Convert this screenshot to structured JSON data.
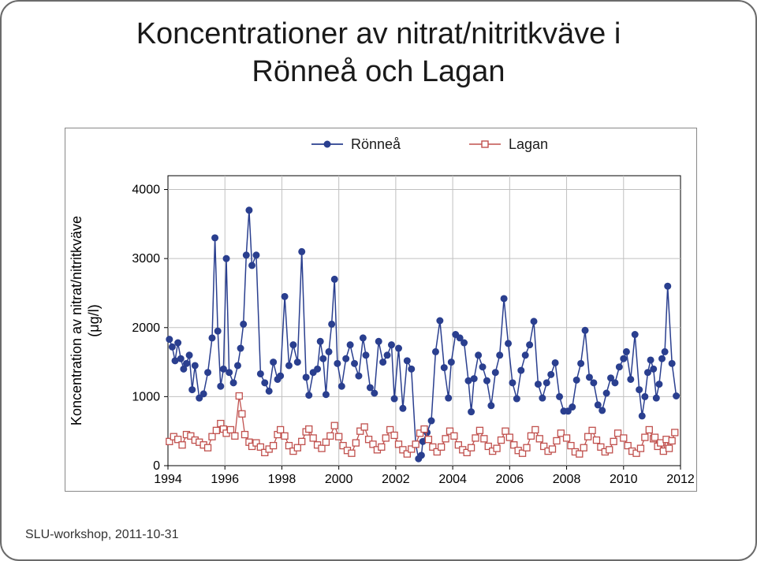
{
  "title": "Koncentrationer av nitrat/nitritkväve i\nRönneå och Lagan",
  "footer": "SLU-workshop, 2011-10-31",
  "chart": {
    "type": "line",
    "background_color": "#ffffff",
    "plot_border_color": "#000000",
    "grid_color": "#c0c0c0",
    "xlim": [
      1994,
      2012
    ],
    "ylim": [
      0,
      4200
    ],
    "xticks": [
      1994,
      1996,
      1998,
      2000,
      2002,
      2004,
      2006,
      2008,
      2010,
      2012
    ],
    "yticks": [
      0,
      1000,
      2000,
      3000,
      4000
    ],
    "ylabel": "Koncentration av nitrat/nitritkväve\n(μg/l)",
    "ylabel_fontsize": 18,
    "tick_fontsize": 16,
    "legend": {
      "position": "top",
      "items": [
        {
          "label": "Rönneå",
          "color": "#2a3f8f",
          "marker": "circle"
        },
        {
          "label": "Lagan",
          "color": "#c0504d",
          "marker": "square-open"
        }
      ]
    },
    "series": [
      {
        "name": "Rönneå",
        "color": "#2a3f8f",
        "line_width": 1.5,
        "marker": "circle",
        "marker_size": 4,
        "data": [
          [
            1994.05,
            1830
          ],
          [
            1994.15,
            1720
          ],
          [
            1994.25,
            1520
          ],
          [
            1994.35,
            1780
          ],
          [
            1994.45,
            1550
          ],
          [
            1994.55,
            1400
          ],
          [
            1994.65,
            1480
          ],
          [
            1994.75,
            1600
          ],
          [
            1994.85,
            1100
          ],
          [
            1994.95,
            1450
          ],
          [
            1995.1,
            980
          ],
          [
            1995.25,
            1040
          ],
          [
            1995.4,
            1350
          ],
          [
            1995.55,
            1850
          ],
          [
            1995.65,
            3300
          ],
          [
            1995.75,
            1950
          ],
          [
            1995.85,
            1150
          ],
          [
            1995.95,
            1400
          ],
          [
            1996.05,
            3000
          ],
          [
            1996.15,
            1350
          ],
          [
            1996.3,
            1200
          ],
          [
            1996.45,
            1450
          ],
          [
            1996.55,
            1700
          ],
          [
            1996.65,
            2050
          ],
          [
            1996.75,
            3050
          ],
          [
            1996.85,
            3700
          ],
          [
            1996.95,
            2900
          ],
          [
            1997.1,
            3050
          ],
          [
            1997.25,
            1330
          ],
          [
            1997.4,
            1200
          ],
          [
            1997.55,
            1080
          ],
          [
            1997.7,
            1500
          ],
          [
            1997.85,
            1250
          ],
          [
            1997.95,
            1300
          ],
          [
            1998.1,
            2450
          ],
          [
            1998.25,
            1450
          ],
          [
            1998.4,
            1750
          ],
          [
            1998.55,
            1500
          ],
          [
            1998.7,
            3100
          ],
          [
            1998.85,
            1280
          ],
          [
            1998.95,
            1020
          ],
          [
            1999.1,
            1350
          ],
          [
            1999.25,
            1400
          ],
          [
            1999.35,
            1800
          ],
          [
            1999.45,
            1550
          ],
          [
            1999.55,
            1030
          ],
          [
            1999.65,
            1650
          ],
          [
            1999.75,
            2050
          ],
          [
            1999.85,
            2700
          ],
          [
            1999.95,
            1480
          ],
          [
            2000.1,
            1150
          ],
          [
            2000.25,
            1550
          ],
          [
            2000.4,
            1750
          ],
          [
            2000.55,
            1480
          ],
          [
            2000.7,
            1300
          ],
          [
            2000.85,
            1850
          ],
          [
            2000.95,
            1600
          ],
          [
            2001.1,
            1130
          ],
          [
            2001.25,
            1050
          ],
          [
            2001.4,
            1800
          ],
          [
            2001.55,
            1500
          ],
          [
            2001.7,
            1600
          ],
          [
            2001.85,
            1750
          ],
          [
            2001.95,
            970
          ],
          [
            2002.1,
            1700
          ],
          [
            2002.25,
            830
          ],
          [
            2002.4,
            1520
          ],
          [
            2002.55,
            1400
          ],
          [
            2002.7,
            310
          ],
          [
            2002.8,
            100
          ],
          [
            2002.9,
            150
          ],
          [
            2002.95,
            350
          ],
          [
            2003.1,
            480
          ],
          [
            2003.25,
            650
          ],
          [
            2003.4,
            1650
          ],
          [
            2003.55,
            2100
          ],
          [
            2003.7,
            1420
          ],
          [
            2003.85,
            980
          ],
          [
            2003.95,
            1500
          ],
          [
            2004.1,
            1900
          ],
          [
            2004.25,
            1850
          ],
          [
            2004.4,
            1780
          ],
          [
            2004.55,
            1230
          ],
          [
            2004.65,
            780
          ],
          [
            2004.75,
            1260
          ],
          [
            2004.9,
            1600
          ],
          [
            2005.05,
            1430
          ],
          [
            2005.2,
            1230
          ],
          [
            2005.35,
            870
          ],
          [
            2005.5,
            1350
          ],
          [
            2005.65,
            1600
          ],
          [
            2005.8,
            2420
          ],
          [
            2005.95,
            1770
          ],
          [
            2006.1,
            1200
          ],
          [
            2006.25,
            970
          ],
          [
            2006.4,
            1380
          ],
          [
            2006.55,
            1600
          ],
          [
            2006.7,
            1750
          ],
          [
            2006.85,
            2090
          ],
          [
            2007.0,
            1180
          ],
          [
            2007.15,
            980
          ],
          [
            2007.3,
            1200
          ],
          [
            2007.45,
            1320
          ],
          [
            2007.6,
            1490
          ],
          [
            2007.75,
            1000
          ],
          [
            2007.9,
            790
          ],
          [
            2008.05,
            790
          ],
          [
            2008.2,
            850
          ],
          [
            2008.35,
            1240
          ],
          [
            2008.5,
            1480
          ],
          [
            2008.65,
            1960
          ],
          [
            2008.8,
            1280
          ],
          [
            2008.95,
            1200
          ],
          [
            2009.1,
            880
          ],
          [
            2009.25,
            800
          ],
          [
            2009.4,
            1050
          ],
          [
            2009.55,
            1270
          ],
          [
            2009.7,
            1200
          ],
          [
            2009.85,
            1430
          ],
          [
            2010.0,
            1550
          ],
          [
            2010.1,
            1650
          ],
          [
            2010.25,
            1250
          ],
          [
            2010.4,
            1900
          ],
          [
            2010.55,
            1100
          ],
          [
            2010.65,
            720
          ],
          [
            2010.75,
            1000
          ],
          [
            2010.85,
            1350
          ],
          [
            2010.95,
            1530
          ],
          [
            2011.05,
            1400
          ],
          [
            2011.15,
            980
          ],
          [
            2011.25,
            1180
          ],
          [
            2011.35,
            1550
          ],
          [
            2011.45,
            1650
          ],
          [
            2011.55,
            2600
          ],
          [
            2011.7,
            1480
          ],
          [
            2011.85,
            1010
          ]
        ]
      },
      {
        "name": "Lagan",
        "color": "#c0504d",
        "line_width": 1.3,
        "marker": "square-open",
        "marker_size": 4,
        "data": [
          [
            1994.05,
            350
          ],
          [
            1994.2,
            420
          ],
          [
            1994.35,
            380
          ],
          [
            1994.5,
            300
          ],
          [
            1994.65,
            450
          ],
          [
            1994.8,
            430
          ],
          [
            1994.95,
            370
          ],
          [
            1995.1,
            340
          ],
          [
            1995.25,
            300
          ],
          [
            1995.4,
            260
          ],
          [
            1995.55,
            420
          ],
          [
            1995.7,
            510
          ],
          [
            1995.85,
            610
          ],
          [
            1995.95,
            530
          ],
          [
            1996.05,
            470
          ],
          [
            1996.2,
            520
          ],
          [
            1996.35,
            430
          ],
          [
            1996.5,
            1010
          ],
          [
            1996.6,
            750
          ],
          [
            1996.7,
            450
          ],
          [
            1996.85,
            340
          ],
          [
            1996.95,
            280
          ],
          [
            1997.1,
            330
          ],
          [
            1997.25,
            270
          ],
          [
            1997.4,
            190
          ],
          [
            1997.55,
            240
          ],
          [
            1997.7,
            290
          ],
          [
            1997.85,
            450
          ],
          [
            1997.95,
            520
          ],
          [
            1998.1,
            430
          ],
          [
            1998.25,
            290
          ],
          [
            1998.4,
            210
          ],
          [
            1998.55,
            260
          ],
          [
            1998.7,
            350
          ],
          [
            1998.85,
            490
          ],
          [
            1998.95,
            530
          ],
          [
            1999.1,
            400
          ],
          [
            1999.25,
            300
          ],
          [
            1999.4,
            250
          ],
          [
            1999.55,
            340
          ],
          [
            1999.7,
            430
          ],
          [
            1999.85,
            580
          ],
          [
            2000.0,
            420
          ],
          [
            2000.15,
            290
          ],
          [
            2000.3,
            220
          ],
          [
            2000.45,
            180
          ],
          [
            2000.6,
            330
          ],
          [
            2000.75,
            500
          ],
          [
            2000.9,
            560
          ],
          [
            2001.05,
            380
          ],
          [
            2001.2,
            310
          ],
          [
            2001.35,
            230
          ],
          [
            2001.5,
            270
          ],
          [
            2001.65,
            400
          ],
          [
            2001.8,
            520
          ],
          [
            2001.95,
            440
          ],
          [
            2002.1,
            310
          ],
          [
            2002.25,
            230
          ],
          [
            2002.4,
            170
          ],
          [
            2002.55,
            240
          ],
          [
            2002.7,
            310
          ],
          [
            2002.85,
            470
          ],
          [
            2003.0,
            530
          ],
          [
            2003.15,
            380
          ],
          [
            2003.3,
            270
          ],
          [
            2003.45,
            200
          ],
          [
            2003.6,
            270
          ],
          [
            2003.75,
            390
          ],
          [
            2003.9,
            500
          ],
          [
            2004.05,
            430
          ],
          [
            2004.2,
            300
          ],
          [
            2004.35,
            230
          ],
          [
            2004.5,
            190
          ],
          [
            2004.65,
            260
          ],
          [
            2004.8,
            400
          ],
          [
            2004.95,
            510
          ],
          [
            2005.1,
            390
          ],
          [
            2005.25,
            280
          ],
          [
            2005.4,
            210
          ],
          [
            2005.55,
            250
          ],
          [
            2005.7,
            370
          ],
          [
            2005.85,
            500
          ],
          [
            2006.0,
            410
          ],
          [
            2006.15,
            300
          ],
          [
            2006.3,
            220
          ],
          [
            2006.45,
            180
          ],
          [
            2006.6,
            260
          ],
          [
            2006.75,
            430
          ],
          [
            2006.9,
            520
          ],
          [
            2007.05,
            390
          ],
          [
            2007.2,
            280
          ],
          [
            2007.35,
            210
          ],
          [
            2007.5,
            240
          ],
          [
            2007.65,
            360
          ],
          [
            2007.8,
            470
          ],
          [
            2008.0,
            400
          ],
          [
            2008.15,
            290
          ],
          [
            2008.3,
            200
          ],
          [
            2008.45,
            170
          ],
          [
            2008.6,
            260
          ],
          [
            2008.75,
            420
          ],
          [
            2008.9,
            510
          ],
          [
            2009.05,
            370
          ],
          [
            2009.2,
            270
          ],
          [
            2009.35,
            200
          ],
          [
            2009.5,
            230
          ],
          [
            2009.65,
            350
          ],
          [
            2009.8,
            470
          ],
          [
            2010.0,
            400
          ],
          [
            2010.15,
            290
          ],
          [
            2010.3,
            210
          ],
          [
            2010.45,
            180
          ],
          [
            2010.6,
            250
          ],
          [
            2010.75,
            410
          ],
          [
            2010.9,
            520
          ],
          [
            2011.05,
            390
          ],
          [
            2011.1,
            410
          ],
          [
            2011.2,
            280
          ],
          [
            2011.3,
            330
          ],
          [
            2011.4,
            210
          ],
          [
            2011.5,
            380
          ],
          [
            2011.6,
            250
          ],
          [
            2011.7,
            360
          ],
          [
            2011.8,
            480
          ]
        ]
      }
    ]
  }
}
